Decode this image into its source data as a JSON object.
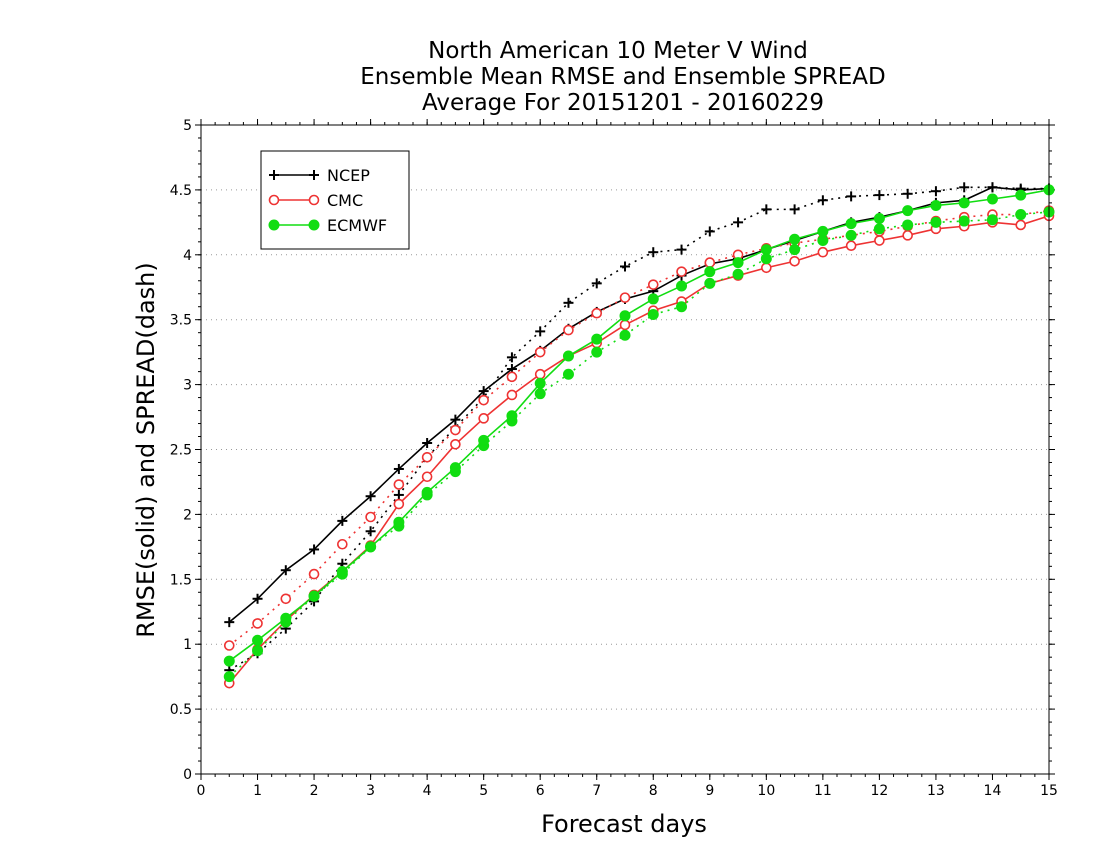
{
  "chart_data": {
    "type": "line",
    "title_lines": [
      "North American 10 Meter V Wind",
      "Ensemble Mean RMSE and Ensemble SPREAD",
      "Average For 20151201 - 20160229"
    ],
    "xlabel": "Forecast days",
    "ylabel": "RMSE(solid) and SPREAD(dash)",
    "xlim": [
      0,
      15
    ],
    "ylim": [
      0,
      5
    ],
    "xticks": [
      "0",
      "1",
      "2",
      "3",
      "4",
      "5",
      "6",
      "7",
      "8",
      "9",
      "10",
      "11",
      "12",
      "13",
      "14",
      "15"
    ],
    "yticks": [
      "0",
      "0.5",
      "1",
      "1.5",
      "2",
      "2.5",
      "3",
      "3.5",
      "4",
      "4.5",
      "5"
    ],
    "grid": "horizontal dotted",
    "legend_position": "top-left",
    "x": [
      0.5,
      1,
      1.5,
      2,
      2.5,
      3,
      3.5,
      4,
      4.5,
      5,
      5.5,
      6,
      6.5,
      7,
      7.5,
      8,
      8.5,
      9,
      9.5,
      10,
      10.5,
      11,
      11.5,
      12,
      12.5,
      13,
      13.5,
      14,
      14.5,
      15
    ],
    "series": [
      {
        "name": "NCEP",
        "color": "#000000",
        "marker": "plus",
        "rmse": [
          1.17,
          1.35,
          1.57,
          1.73,
          1.95,
          2.14,
          2.35,
          2.55,
          2.73,
          2.95,
          3.12,
          3.26,
          3.43,
          3.56,
          3.66,
          3.72,
          3.84,
          3.93,
          3.97,
          4.04,
          4.11,
          4.18,
          4.25,
          4.29,
          4.34,
          4.4,
          4.42,
          4.52,
          4.5,
          4.51
        ],
        "spread": [
          0.8,
          0.93,
          1.12,
          1.33,
          1.62,
          1.87,
          2.15,
          2.44,
          2.67,
          2.9,
          3.21,
          3.41,
          3.63,
          3.78,
          3.91,
          4.02,
          4.04,
          4.18,
          4.25,
          4.35,
          4.35,
          4.42,
          4.45,
          4.46,
          4.47,
          4.49,
          4.52,
          4.52,
          4.51,
          4.51
        ]
      },
      {
        "name": "CMC",
        "color": "#ee3333",
        "marker": "open-circle",
        "rmse": [
          0.7,
          0.96,
          1.18,
          1.38,
          1.56,
          1.76,
          2.08,
          2.29,
          2.54,
          2.74,
          2.92,
          3.08,
          3.22,
          3.32,
          3.46,
          3.57,
          3.64,
          3.78,
          3.84,
          3.9,
          3.95,
          4.02,
          4.07,
          4.11,
          4.15,
          4.2,
          4.22,
          4.25,
          4.23,
          4.3
        ],
        "spread": [
          0.99,
          1.16,
          1.35,
          1.54,
          1.77,
          1.98,
          2.23,
          2.44,
          2.65,
          2.88,
          3.06,
          3.25,
          3.42,
          3.55,
          3.67,
          3.77,
          3.87,
          3.94,
          4.0,
          4.05,
          4.09,
          4.12,
          4.15,
          4.18,
          4.22,
          4.26,
          4.29,
          4.31,
          4.31,
          4.34
        ]
      },
      {
        "name": "ECMWF",
        "color": "#11dd11",
        "marker": "filled-circle",
        "rmse": [
          0.87,
          1.03,
          1.2,
          1.37,
          1.56,
          1.75,
          1.94,
          2.17,
          2.36,
          2.57,
          2.76,
          3.01,
          3.22,
          3.35,
          3.53,
          3.66,
          3.76,
          3.87,
          3.94,
          4.04,
          4.12,
          4.18,
          4.24,
          4.28,
          4.34,
          4.38,
          4.4,
          4.43,
          4.46,
          4.5
        ],
        "spread": [
          0.75,
          0.95,
          1.17,
          1.37,
          1.54,
          1.75,
          1.91,
          2.15,
          2.33,
          2.53,
          2.72,
          2.93,
          3.08,
          3.25,
          3.38,
          3.54,
          3.6,
          3.78,
          3.85,
          3.97,
          4.04,
          4.11,
          4.15,
          4.2,
          4.23,
          4.25,
          4.26,
          4.27,
          4.31,
          4.33
        ]
      }
    ]
  }
}
